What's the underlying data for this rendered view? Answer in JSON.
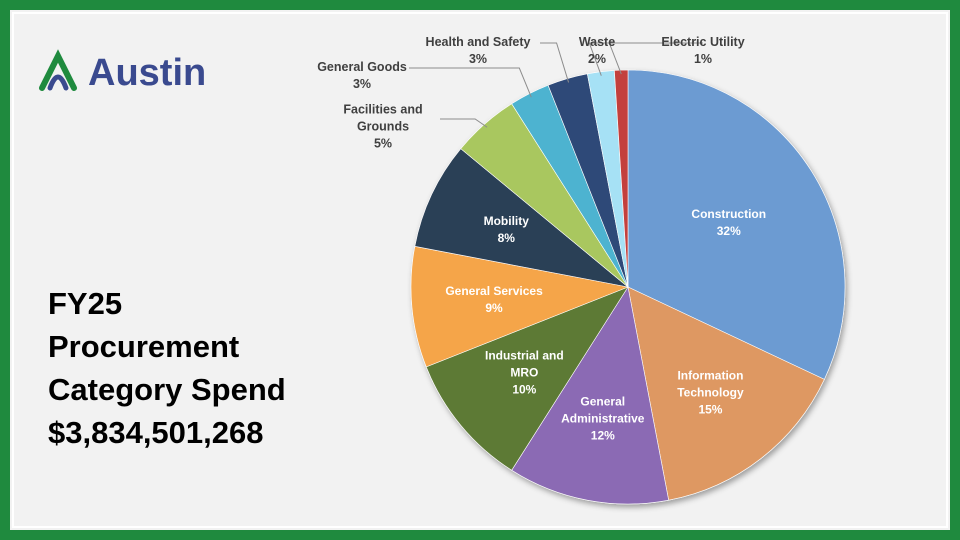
{
  "logo": {
    "text": "Austin"
  },
  "chart_data": {
    "type": "pie",
    "title": "FY25 Procurement Category Spend",
    "subtitle": "$3,834,501,268",
    "categories": [
      "Construction",
      "Information Technology",
      "General Administrative",
      "Industrial and MRO",
      "General Services",
      "Mobility",
      "Facilities and Grounds",
      "General Goods",
      "Health and Safety",
      "Waste",
      "Electric Utility"
    ],
    "values": [
      32,
      15,
      12,
      10,
      9,
      8,
      5,
      3,
      3,
      2,
      1
    ],
    "value_labels": [
      "32%",
      "15%",
      "12%",
      "10%",
      "9%",
      "8%",
      "5%",
      "3%",
      "3%",
      "2%",
      "1%"
    ],
    "colors": [
      "#6c9bd2",
      "#de9862",
      "#8b6bb4",
      "#5d7a35",
      "#f5a54a",
      "#2c3f57",
      "#a9c75e",
      "#4db3d0",
      "#2f4a78",
      "#a6e1f5",
      "#c3413d"
    ]
  }
}
